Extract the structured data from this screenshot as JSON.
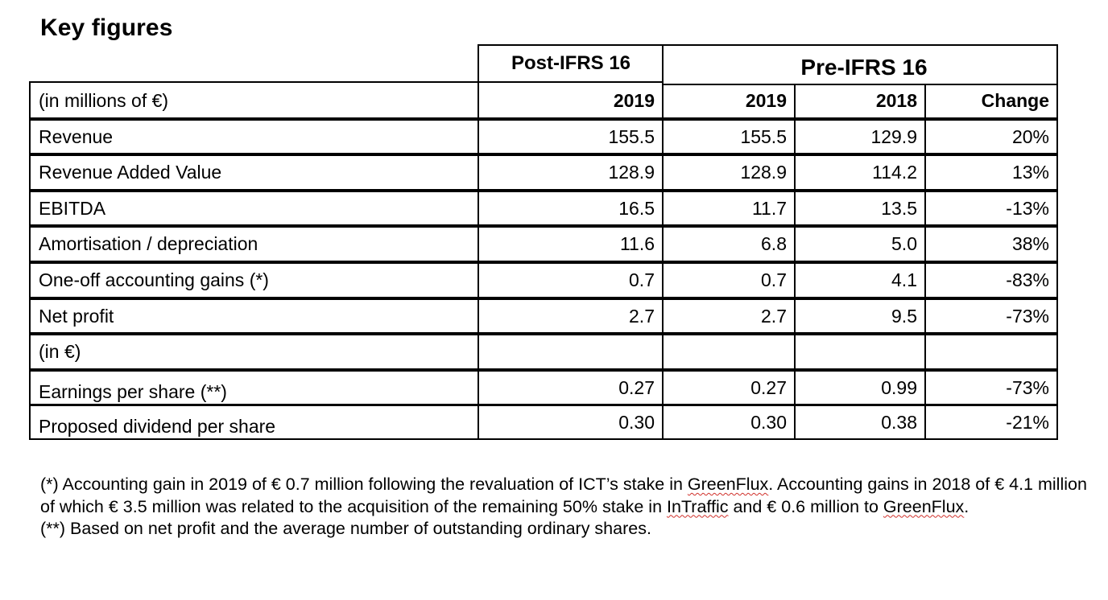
{
  "title": "Key figures",
  "table": {
    "group_headers": {
      "post": "Post-IFRS 16",
      "pre": "Pre-IFRS 16"
    },
    "header": {
      "label": "(in millions of €)",
      "post_2019": "2019",
      "pre_2019": "2019",
      "pre_2018": "2018",
      "change": "Change"
    },
    "rows": [
      {
        "label": "Revenue",
        "post_2019": "155.5",
        "pre_2019": "155.5",
        "pre_2018": "129.9",
        "change": "20%"
      },
      {
        "label": "Revenue Added Value",
        "post_2019": "128.9",
        "pre_2019": "128.9",
        "pre_2018": "114.2",
        "change": "13%"
      },
      {
        "label": "EBITDA",
        "post_2019": "16.5",
        "pre_2019": "11.7",
        "pre_2018": "13.5",
        "change": "-13%"
      },
      {
        "label": "Amortisation / depreciation",
        "post_2019": "11.6",
        "pre_2019": "6.8",
        "pre_2018": "5.0",
        "change": "38%"
      },
      {
        "label": "One-off accounting gains (*)",
        "post_2019": "0.7",
        "pre_2019": "0.7",
        "pre_2018": "4.1",
        "change": "-83%"
      },
      {
        "label": "Net profit",
        "post_2019": "2.7",
        "pre_2019": "2.7",
        "pre_2018": "9.5",
        "change": "-73%"
      },
      {
        "label": "(in €)",
        "post_2019": "",
        "pre_2019": "",
        "pre_2018": "",
        "change": ""
      },
      {
        "label": "Earnings per share (**)",
        "post_2019": "0.27",
        "pre_2019": "0.27",
        "pre_2018": "0.99",
        "change": "-73%"
      },
      {
        "label": "Proposed dividend per share",
        "post_2019": "0.30",
        "pre_2019": "0.30",
        "pre_2018": "0.38",
        "change": "-21%"
      }
    ]
  },
  "footnotes": {
    "note1_a": "(*) Accounting gain in 2019 of € 0.7 million following the revaluation of ICT’s stake in ",
    "note1_b": "GreenFlux",
    "note1_c": ". Accounting gains in 2018 of € 4.1 million of which € 3.5 million was related to the acquisition of the remaining 50% stake in ",
    "note1_d": "InTraffic",
    "note1_e": " and € 0.6 million to ",
    "note1_f": "GreenFlux",
    "note1_g": ".",
    "note2": "(**) Based on net profit and the average number of outstanding ordinary shares."
  }
}
